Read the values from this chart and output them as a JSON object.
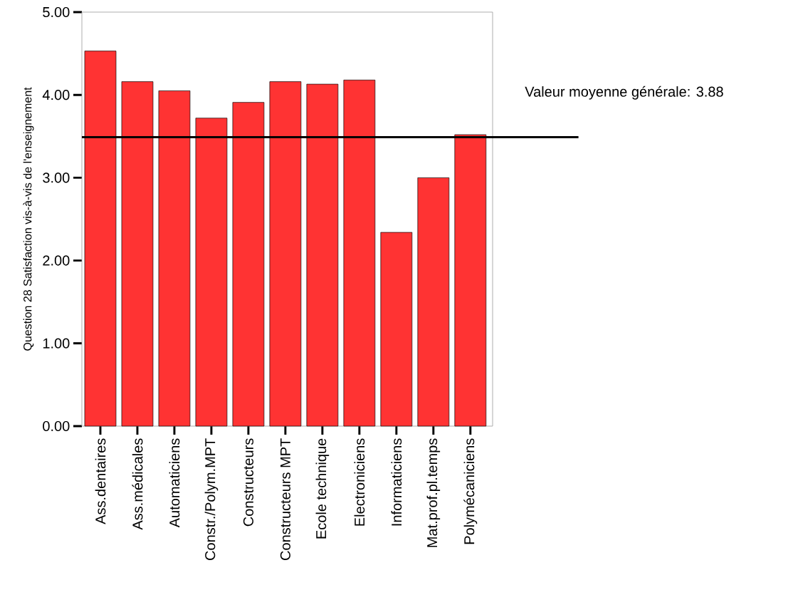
{
  "chart_data": {
    "type": "bar",
    "ylabel": "Question 28 Satisfaction vis-à-vis de l'enseignement",
    "categories": [
      "Ass.dentaires",
      "Ass.médicales",
      "Automaticiens",
      "Constr./Polym.MPT",
      "Constructeurs",
      "Constructeurs MPT",
      "Ecole technique",
      "Electroniciens",
      "Informaticiens",
      "Mat.prof.pl.temps",
      "Polymécaniciens"
    ],
    "values": [
      4.53,
      4.16,
      4.05,
      3.72,
      3.91,
      4.16,
      4.13,
      4.18,
      2.34,
      3.0,
      3.52
    ],
    "color": "#ff3333",
    "ylim": [
      0,
      5
    ],
    "yticks": [
      {
        "value": 0,
        "label": "0.00"
      },
      {
        "value": 1,
        "label": "1.00"
      },
      {
        "value": 2,
        "label": "2.00"
      },
      {
        "value": 3,
        "label": "3.00"
      },
      {
        "value": 4,
        "label": "4.00"
      },
      {
        "value": 5,
        "label": "5.00"
      }
    ],
    "ref_lines": [
      {
        "axis": "y",
        "value": 3.49,
        "color": "#000000"
      }
    ],
    "annotations": [
      "Valeur moyenne générale: 3.88"
    ]
  }
}
